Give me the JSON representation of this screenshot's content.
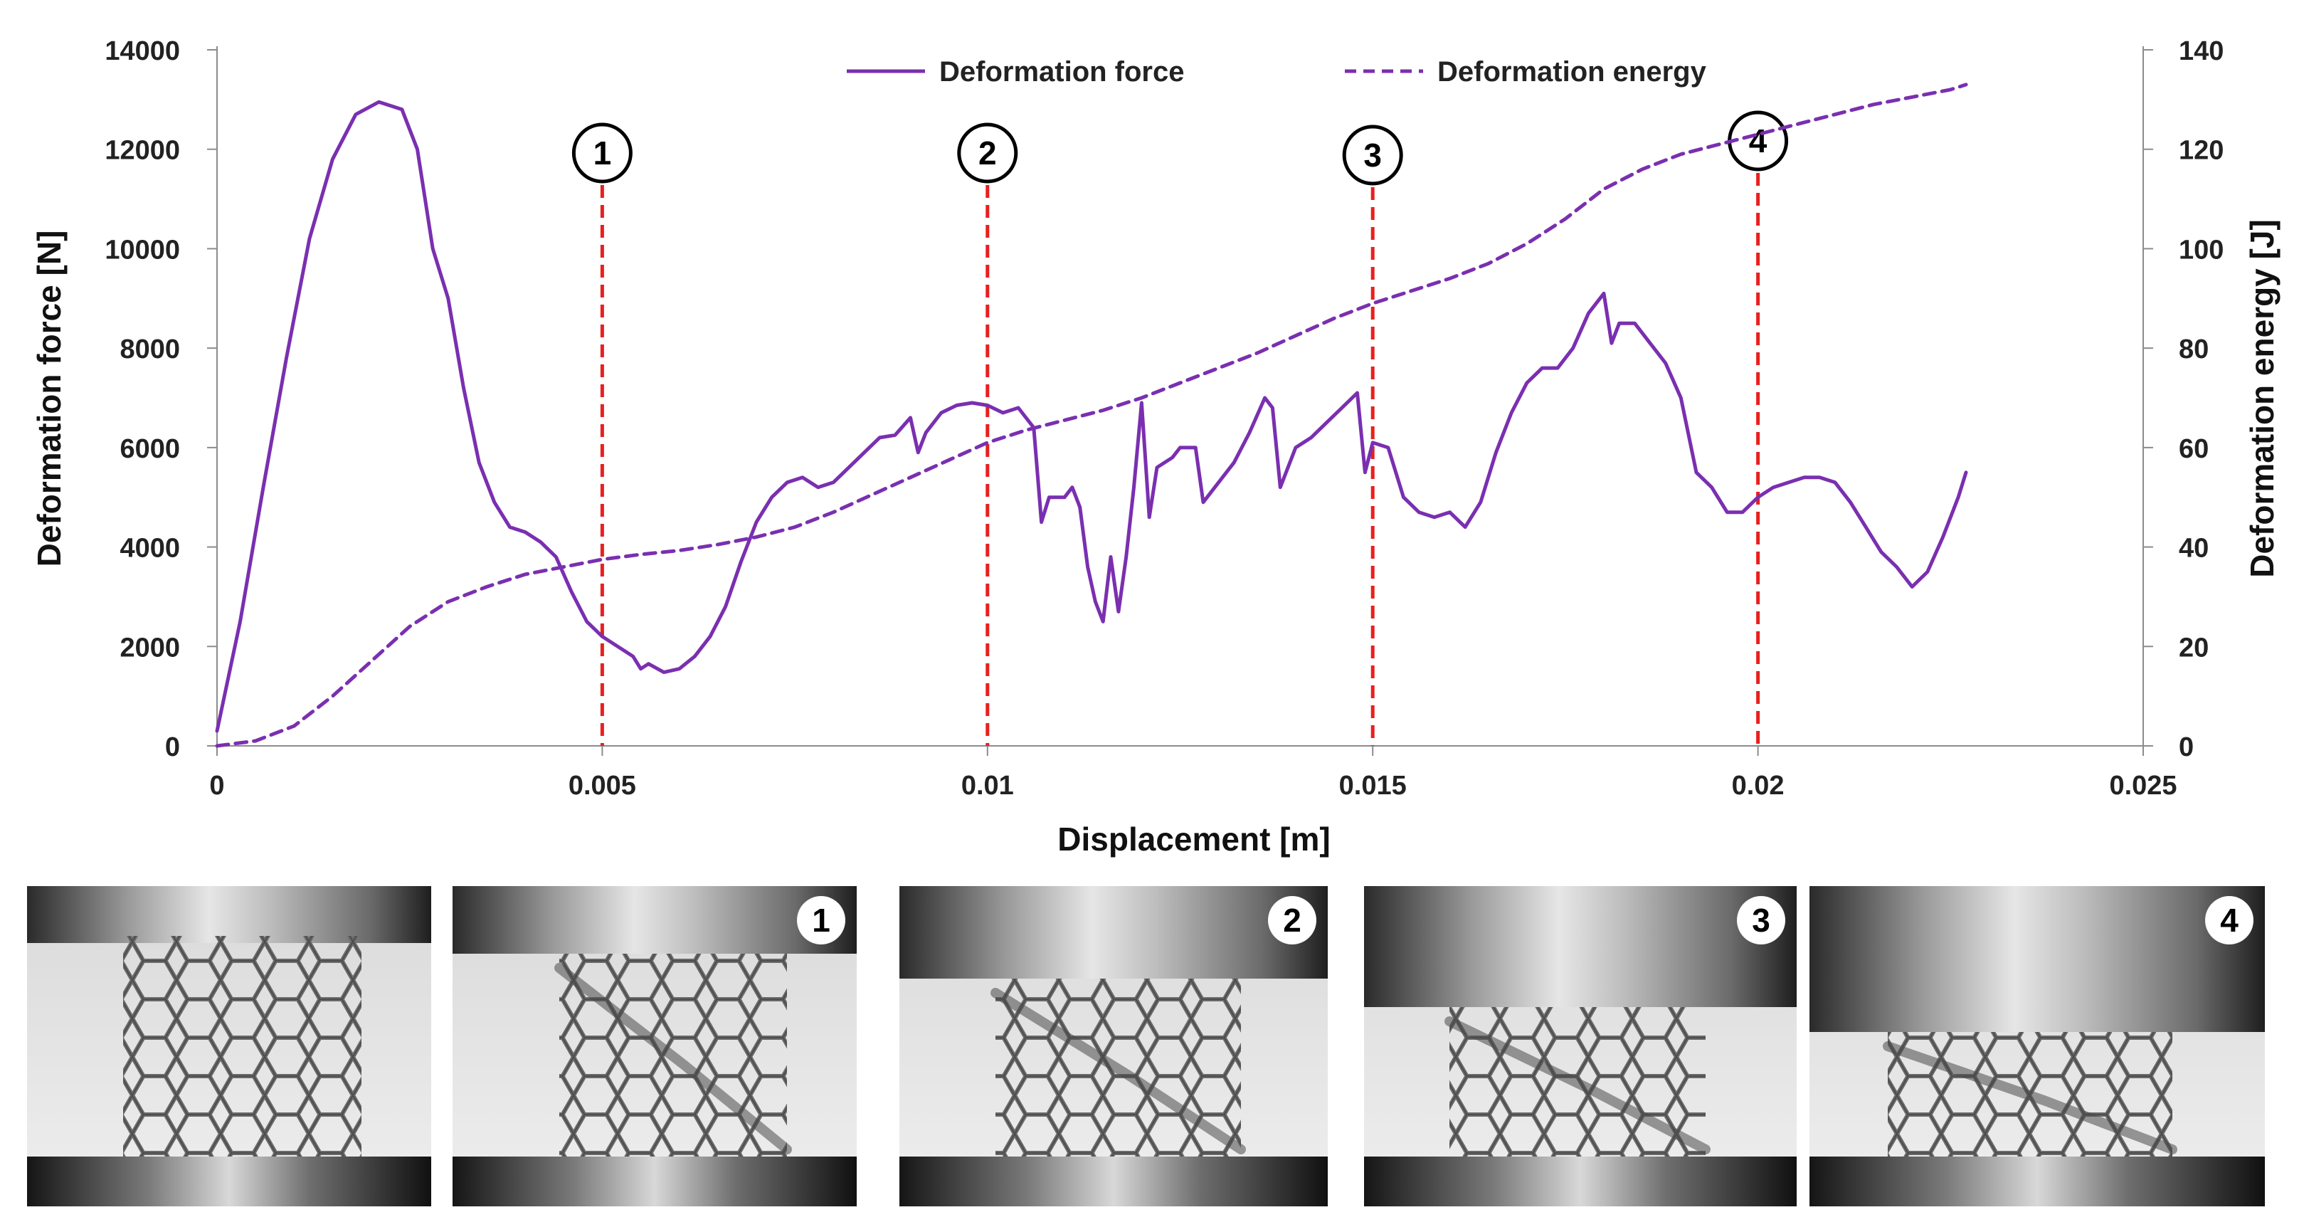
{
  "chart_data": {
    "type": "line",
    "xlabel": "Displacement [m]",
    "ylabel": "Deformation force [N]",
    "y2label": "Deformation energy [J]",
    "xlim": [
      0,
      0.025
    ],
    "ylim": [
      0,
      14000
    ],
    "y2lim": [
      0,
      140
    ],
    "x_ticks": [
      "0",
      "0.005",
      "0.01",
      "0.015",
      "0.02",
      "0.025"
    ],
    "y_ticks": [
      "0",
      "2000",
      "4000",
      "6000",
      "8000",
      "10000",
      "12000",
      "14000"
    ],
    "y2_ticks": [
      "0",
      "20",
      "40",
      "60",
      "80",
      "100",
      "120",
      "140"
    ],
    "legend_position": "top-center",
    "grid": false,
    "colors": {
      "series": "#7a2fb0",
      "markers": "#e8201f"
    },
    "series": [
      {
        "name": "Deformation force",
        "axis": "left",
        "style": "solid",
        "points": [
          [
            0,
            300
          ],
          [
            0.0003,
            2500
          ],
          [
            0.0006,
            5200
          ],
          [
            0.0009,
            7800
          ],
          [
            0.0012,
            10200
          ],
          [
            0.0015,
            11800
          ],
          [
            0.0018,
            12700
          ],
          [
            0.0021,
            12950
          ],
          [
            0.0024,
            12800
          ],
          [
            0.0026,
            12000
          ],
          [
            0.0027,
            11000
          ],
          [
            0.0028,
            10000
          ],
          [
            0.003,
            9000
          ],
          [
            0.0032,
            7200
          ],
          [
            0.0034,
            5700
          ],
          [
            0.0036,
            4900
          ],
          [
            0.0038,
            4400
          ],
          [
            0.004,
            4300
          ],
          [
            0.0042,
            4100
          ],
          [
            0.0044,
            3800
          ],
          [
            0.0046,
            3100
          ],
          [
            0.0048,
            2500
          ],
          [
            0.005,
            2200
          ],
          [
            0.0052,
            2000
          ],
          [
            0.0054,
            1800
          ],
          [
            0.0055,
            1550
          ],
          [
            0.0056,
            1650
          ],
          [
            0.0058,
            1480
          ],
          [
            0.006,
            1550
          ],
          [
            0.0062,
            1800
          ],
          [
            0.0064,
            2200
          ],
          [
            0.0066,
            2800
          ],
          [
            0.0068,
            3700
          ],
          [
            0.007,
            4500
          ],
          [
            0.0072,
            5000
          ],
          [
            0.0074,
            5300
          ],
          [
            0.0076,
            5400
          ],
          [
            0.0078,
            5200
          ],
          [
            0.008,
            5300
          ],
          [
            0.0082,
            5600
          ],
          [
            0.0084,
            5900
          ],
          [
            0.0086,
            6200
          ],
          [
            0.0088,
            6250
          ],
          [
            0.009,
            6600
          ],
          [
            0.0091,
            5900
          ],
          [
            0.0092,
            6300
          ],
          [
            0.0094,
            6700
          ],
          [
            0.0096,
            6850
          ],
          [
            0.0098,
            6900
          ],
          [
            0.01,
            6850
          ],
          [
            0.0102,
            6700
          ],
          [
            0.0104,
            6800
          ],
          [
            0.0106,
            6400
          ],
          [
            0.0107,
            4500
          ],
          [
            0.0108,
            5000
          ],
          [
            0.011,
            5000
          ],
          [
            0.0111,
            5200
          ],
          [
            0.0112,
            4800
          ],
          [
            0.0113,
            3600
          ],
          [
            0.0114,
            2900
          ],
          [
            0.0115,
            2500
          ],
          [
            0.0116,
            3800
          ],
          [
            0.0117,
            2700
          ],
          [
            0.0118,
            3800
          ],
          [
            0.0119,
            5200
          ],
          [
            0.012,
            6900
          ],
          [
            0.0121,
            4600
          ],
          [
            0.0122,
            5600
          ],
          [
            0.0124,
            5800
          ],
          [
            0.0125,
            6000
          ],
          [
            0.0127,
            6000
          ],
          [
            0.0128,
            4900
          ],
          [
            0.013,
            5300
          ],
          [
            0.0132,
            5700
          ],
          [
            0.0134,
            6300
          ],
          [
            0.0136,
            7000
          ],
          [
            0.0137,
            6800
          ],
          [
            0.0138,
            5200
          ],
          [
            0.014,
            6000
          ],
          [
            0.0142,
            6200
          ],
          [
            0.0144,
            6500
          ],
          [
            0.0146,
            6800
          ],
          [
            0.0148,
            7100
          ],
          [
            0.0149,
            5500
          ],
          [
            0.015,
            6100
          ],
          [
            0.0152,
            6000
          ],
          [
            0.0154,
            5000
          ],
          [
            0.0156,
            4700
          ],
          [
            0.0158,
            4600
          ],
          [
            0.016,
            4700
          ],
          [
            0.0162,
            4400
          ],
          [
            0.0164,
            4900
          ],
          [
            0.0166,
            5900
          ],
          [
            0.0168,
            6700
          ],
          [
            0.017,
            7300
          ],
          [
            0.0172,
            7600
          ],
          [
            0.0174,
            7600
          ],
          [
            0.0176,
            8000
          ],
          [
            0.0178,
            8700
          ],
          [
            0.018,
            9100
          ],
          [
            0.0181,
            8100
          ],
          [
            0.0182,
            8500
          ],
          [
            0.0184,
            8500
          ],
          [
            0.0186,
            8100
          ],
          [
            0.0188,
            7700
          ],
          [
            0.019,
            7000
          ],
          [
            0.0192,
            5500
          ],
          [
            0.0194,
            5200
          ],
          [
            0.0196,
            4700
          ],
          [
            0.0198,
            4700
          ],
          [
            0.02,
            5000
          ],
          [
            0.0202,
            5200
          ],
          [
            0.0204,
            5300
          ],
          [
            0.0206,
            5400
          ],
          [
            0.0208,
            5400
          ],
          [
            0.021,
            5300
          ],
          [
            0.0212,
            4900
          ],
          [
            0.0214,
            4400
          ],
          [
            0.0216,
            3900
          ],
          [
            0.0218,
            3600
          ],
          [
            0.022,
            3200
          ],
          [
            0.0222,
            3500
          ],
          [
            0.0224,
            4200
          ],
          [
            0.0226,
            5000
          ],
          [
            0.0227,
            5500
          ]
        ]
      },
      {
        "name": "Deformation energy",
        "axis": "right",
        "style": "dashed",
        "points": [
          [
            0,
            0
          ],
          [
            0.0005,
            1
          ],
          [
            0.001,
            4
          ],
          [
            0.0015,
            10
          ],
          [
            0.002,
            17
          ],
          [
            0.0025,
            24
          ],
          [
            0.003,
            29
          ],
          [
            0.0035,
            32
          ],
          [
            0.004,
            34.5
          ],
          [
            0.0045,
            36
          ],
          [
            0.005,
            37.5
          ],
          [
            0.0055,
            38.5
          ],
          [
            0.006,
            39.3
          ],
          [
            0.0065,
            40.5
          ],
          [
            0.007,
            42
          ],
          [
            0.0075,
            44
          ],
          [
            0.008,
            47
          ],
          [
            0.0085,
            50.5
          ],
          [
            0.009,
            54
          ],
          [
            0.0095,
            57.5
          ],
          [
            0.01,
            61
          ],
          [
            0.0105,
            63.5
          ],
          [
            0.011,
            65.5
          ],
          [
            0.0115,
            67.5
          ],
          [
            0.012,
            70
          ],
          [
            0.0125,
            73
          ],
          [
            0.013,
            76
          ],
          [
            0.0135,
            79
          ],
          [
            0.014,
            82.5
          ],
          [
            0.0145,
            86
          ],
          [
            0.015,
            89
          ],
          [
            0.0155,
            91.5
          ],
          [
            0.016,
            94
          ],
          [
            0.0165,
            97
          ],
          [
            0.017,
            101
          ],
          [
            0.0175,
            106
          ],
          [
            0.018,
            112
          ],
          [
            0.0185,
            116
          ],
          [
            0.019,
            119
          ],
          [
            0.0195,
            121
          ],
          [
            0.02,
            123
          ],
          [
            0.0205,
            125
          ],
          [
            0.021,
            127
          ],
          [
            0.0215,
            129
          ],
          [
            0.022,
            130.5
          ],
          [
            0.0225,
            132
          ],
          [
            0.0227,
            133
          ]
        ]
      }
    ],
    "markers": [
      {
        "label": "1",
        "x": 0.005
      },
      {
        "label": "2",
        "x": 0.01
      },
      {
        "label": "3",
        "x": 0.015
      },
      {
        "label": "4",
        "x": 0.02
      }
    ]
  },
  "photos": [
    {
      "badge": ""
    },
    {
      "badge": "1"
    },
    {
      "badge": "2"
    },
    {
      "badge": "3"
    },
    {
      "badge": "4"
    }
  ]
}
